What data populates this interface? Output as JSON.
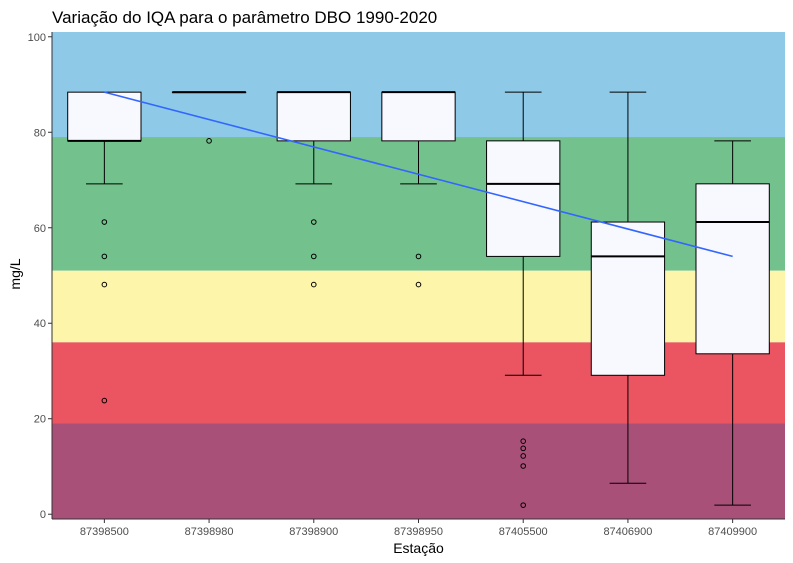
{
  "chart_data": {
    "type": "boxplot",
    "title": "Variação do IQA para o parâmetro DBO 1990-2020",
    "xlabel": "Estação",
    "ylabel": "mg/L",
    "ylim": [
      -1,
      101
    ],
    "y_ticks": [
      0,
      20,
      40,
      60,
      80,
      100
    ],
    "grid": false,
    "categories": [
      "87398500",
      "87398980",
      "87398900",
      "87398950",
      "87405500",
      "87406900",
      "87409900"
    ],
    "bands": [
      {
        "from": 79,
        "to": 101,
        "color": "#8ecae8"
      },
      {
        "from": 51,
        "to": 79,
        "color": "#73c28d"
      },
      {
        "from": 36,
        "to": 51,
        "color": "#fcf5aa"
      },
      {
        "from": 19,
        "to": 36,
        "color": "#eb5561"
      },
      {
        "from": -1,
        "to": 19,
        "color": "#a85078"
      }
    ],
    "boxes": [
      {
        "station": "87398500",
        "whisker_low": 69.2,
        "q1": 78.2,
        "median": 78.2,
        "q3": 88.4,
        "whisker_high": 88.4,
        "outliers": [
          61.2,
          54.0,
          48.1,
          23.8
        ]
      },
      {
        "station": "87398980",
        "whisker_low": 88.4,
        "q1": 88.4,
        "median": 88.4,
        "q3": 88.4,
        "whisker_high": 88.4,
        "outliers": [
          78.2
        ]
      },
      {
        "station": "87398900",
        "whisker_low": 69.2,
        "q1": 78.2,
        "median": 88.4,
        "q3": 88.4,
        "whisker_high": 88.4,
        "outliers": [
          61.2,
          54.0,
          48.1
        ]
      },
      {
        "station": "87398950",
        "whisker_low": 69.2,
        "q1": 78.2,
        "median": 88.4,
        "q3": 88.4,
        "whisker_high": 88.4,
        "outliers": [
          54.0,
          48.1
        ]
      },
      {
        "station": "87405500",
        "whisker_low": 29.1,
        "q1": 54.0,
        "median": 69.2,
        "q3": 78.2,
        "whisker_high": 88.4,
        "outliers": [
          15.3,
          13.8,
          12.2,
          10.1,
          1.9
        ]
      },
      {
        "station": "87406900",
        "whisker_low": 6.5,
        "q1": 29.1,
        "median": 54.0,
        "q3": 61.2,
        "whisker_high": 88.4,
        "outliers": []
      },
      {
        "station": "87409900",
        "whisker_low": 1.9,
        "q1": 33.6,
        "median": 61.2,
        "q3": 69.2,
        "whisker_high": 78.2,
        "outliers": []
      }
    ],
    "trend_line": {
      "color": "#3366ff",
      "y_start": 88.4,
      "y_end": 54.0
    },
    "colors": {
      "box_fill": "#f8f8ff",
      "box_stroke": "#000000",
      "tick_text": "#4d4d4d",
      "axis_line": "#333333"
    }
  }
}
